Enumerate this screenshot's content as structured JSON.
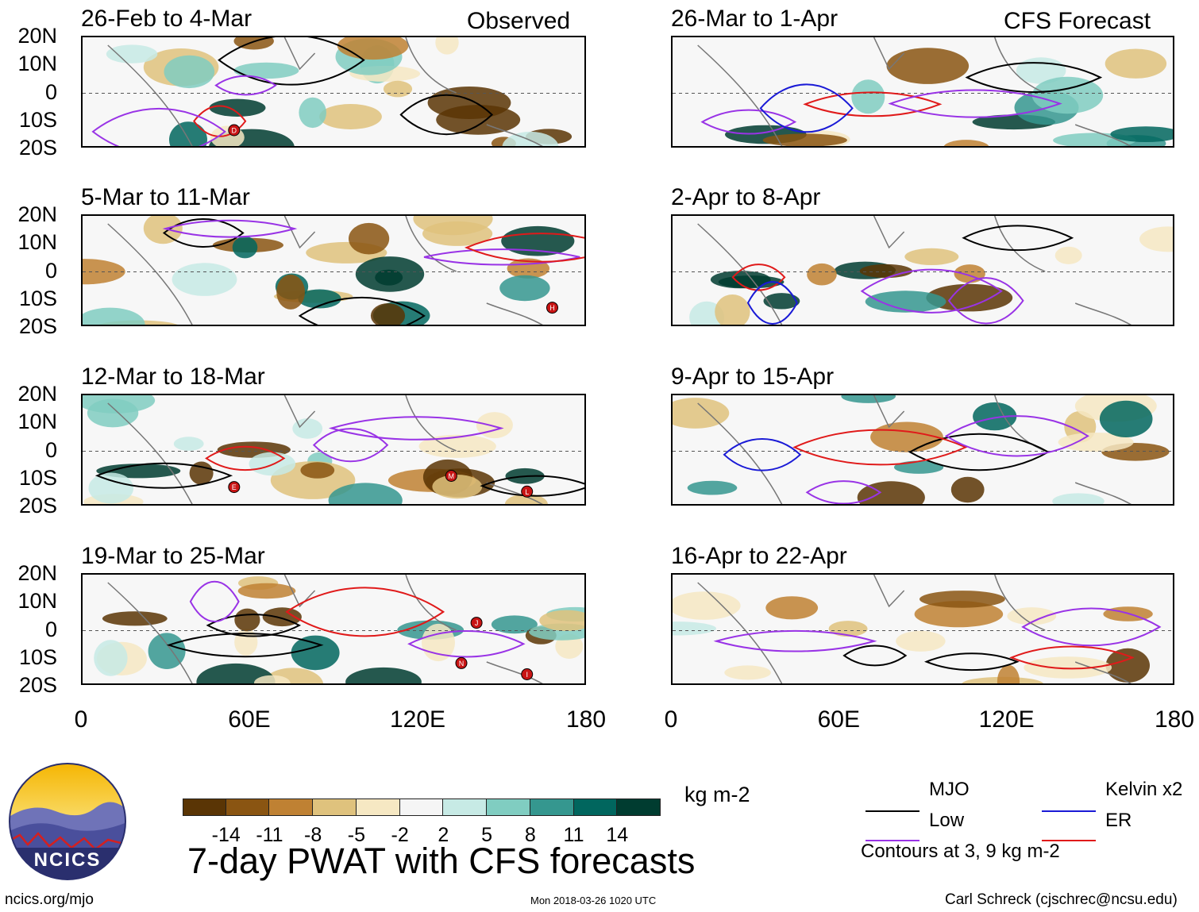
{
  "figure_title": "7-day PWAT with CFS forecasts",
  "observed_label": "Observed",
  "forecast_label": "CFS Forecast",
  "map_data": {
    "type": "heatmap",
    "projection": "lat-lon",
    "longitude_range": [
      0,
      180
    ],
    "latitude_range": [
      -20,
      20
    ],
    "x_ticks": [
      "0",
      "60E",
      "120E",
      "180"
    ],
    "y_ticks": [
      "20N",
      "10N",
      "0",
      "10S",
      "20S"
    ],
    "units": "kg m-2",
    "color_scale": {
      "boundaries": [
        "-14",
        "-11",
        "-8",
        "-5",
        "-2",
        "2",
        "5",
        "8",
        "11",
        "14"
      ],
      "colors": [
        "#5a3505",
        "#8a5512",
        "#bf8133",
        "#dfc27d",
        "#f6e8c3",
        "#f5f5f5",
        "#c7eae5",
        "#80cdc1",
        "#35978f",
        "#01665e",
        "#003c30"
      ]
    },
    "panels": {
      "observed": [
        {
          "title": "26-Feb to 4-Mar",
          "storms": [
            "D"
          ]
        },
        {
          "title": "5-Mar to 11-Mar",
          "storms": [
            "H"
          ]
        },
        {
          "title": "12-Mar to 18-Mar",
          "storms": [
            "E",
            "M",
            "L"
          ]
        },
        {
          "title": "19-Mar to 25-Mar",
          "storms": [
            "J",
            "N",
            "I"
          ]
        }
      ],
      "forecast": [
        {
          "title": "26-Mar to 1-Apr"
        },
        {
          "title": "2-Apr to 8-Apr"
        },
        {
          "title": "9-Apr to 15-Apr"
        },
        {
          "title": "16-Apr to 22-Apr"
        }
      ]
    }
  },
  "legend": {
    "items": [
      {
        "label": "MJO",
        "color": "#000000"
      },
      {
        "label": "Kelvin x2",
        "color": "#1a1ad6"
      },
      {
        "label": "Low",
        "color": "#9933e6"
      },
      {
        "label": "ER",
        "color": "#e01a1a"
      }
    ],
    "contour_note": "Contours at 3, 9 kg m-2"
  },
  "logo_text": "NCICS",
  "footer": {
    "url": "ncics.org/mjo",
    "timestamp": "Mon 2018-03-26 1020 UTC",
    "credit": "Carl Schreck (cjschrec@ncsu.edu)"
  }
}
